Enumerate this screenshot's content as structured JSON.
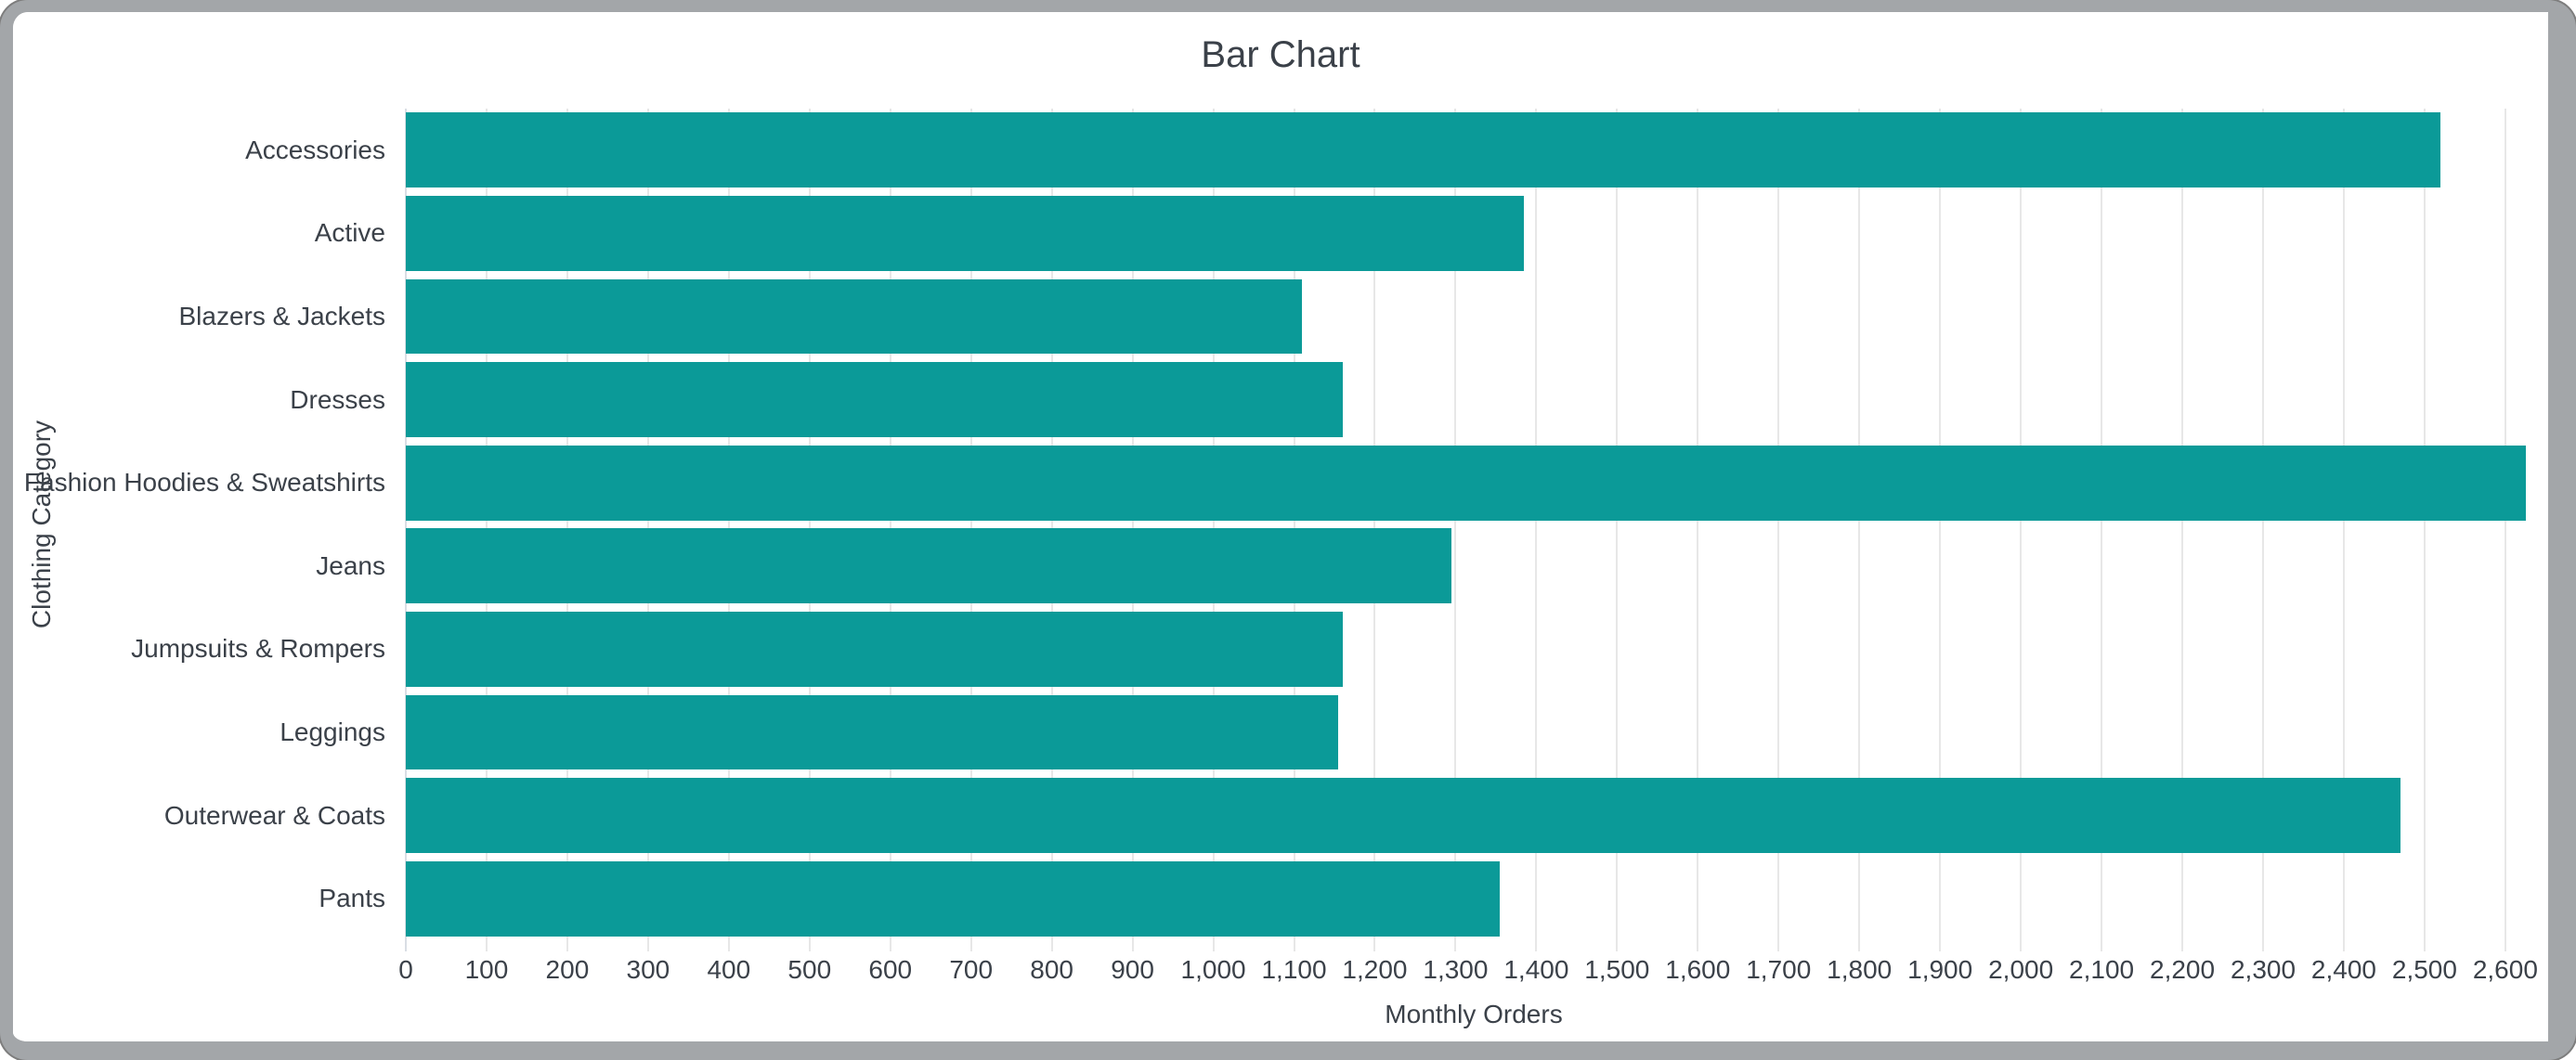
{
  "chart_data": {
    "type": "bar",
    "orientation": "horizontal",
    "title": "Bar Chart",
    "xlabel": "Monthly Orders",
    "ylabel": "Clothing Category",
    "categories": [
      "Accessories",
      "Active",
      "Blazers & Jackets",
      "Dresses",
      "Fashion Hoodies & Sweatshirts",
      "Jeans",
      "Jumpsuits & Rompers",
      "Leggings",
      "Outerwear & Coats",
      "Pants"
    ],
    "values": [
      2520,
      1385,
      1110,
      1160,
      2625,
      1295,
      1160,
      1155,
      2470,
      1355
    ],
    "xlim": [
      0,
      2645
    ],
    "xticks": [
      0,
      100,
      200,
      300,
      400,
      500,
      600,
      700,
      800,
      900,
      1000,
      1100,
      1200,
      1300,
      1400,
      1500,
      1600,
      1700,
      1800,
      1900,
      2000,
      2100,
      2200,
      2300,
      2400,
      2500,
      2600
    ],
    "grid": true,
    "legend": false
  },
  "colors": {
    "bar": "#0b9a98",
    "grid": "#e7e7e7",
    "axis_line": "#d9dee4",
    "text": "#3b4149",
    "frame_border": "#a3a6a9",
    "background": "#ffffff"
  }
}
